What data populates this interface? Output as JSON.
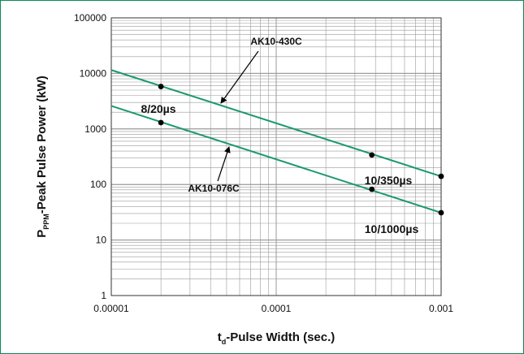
{
  "chart_data": {
    "type": "line",
    "x_scale": "log",
    "y_scale": "log",
    "xlim": [
      1e-05,
      0.001
    ],
    "ylim": [
      1,
      100000
    ],
    "grid": true,
    "xlabel": {
      "main": "t",
      "sub": "d",
      "rest": "-Pulse Width (sec.)"
    },
    "ylabel": {
      "main": "P",
      "sub": "PPM",
      "rest": "-Peak Pulse Power (kW)"
    },
    "x_ticks": [
      {
        "value": 1e-05,
        "label": "0.00001"
      },
      {
        "value": 0.0001,
        "label": "0.0001"
      },
      {
        "value": 0.001,
        "label": "0.001"
      }
    ],
    "y_ticks": [
      {
        "value": 1,
        "label": "1"
      },
      {
        "value": 10,
        "label": "10"
      },
      {
        "value": 100,
        "label": "100"
      },
      {
        "value": 1000,
        "label": "1000"
      },
      {
        "value": 10000,
        "label": "10000"
      },
      {
        "value": 100000,
        "label": "100000"
      }
    ],
    "series": [
      {
        "name": "AK10-430C",
        "x": [
          1e-05,
          0.001
        ],
        "y": [
          11500,
          140
        ],
        "points": [
          {
            "x": 2e-05,
            "y": 5800
          },
          {
            "x": 0.00038,
            "y": 340
          },
          {
            "x": 0.001,
            "y": 140
          }
        ]
      },
      {
        "name": "AK10-076C",
        "x": [
          1e-05,
          0.001
        ],
        "y": [
          2600,
          31
        ],
        "points": [
          {
            "x": 2e-05,
            "y": 1300
          },
          {
            "x": 0.00038,
            "y": 82
          },
          {
            "x": 0.001,
            "y": 31
          }
        ]
      }
    ],
    "annotations": [
      {
        "text": "8/20µs"
      },
      {
        "text": "10/350µs"
      },
      {
        "text": "10/1000µs"
      }
    ],
    "colors": {
      "line": "#1a9a6a",
      "frame": "#0a8a55",
      "grid": "#9a9a9a",
      "text": "#111111"
    }
  }
}
